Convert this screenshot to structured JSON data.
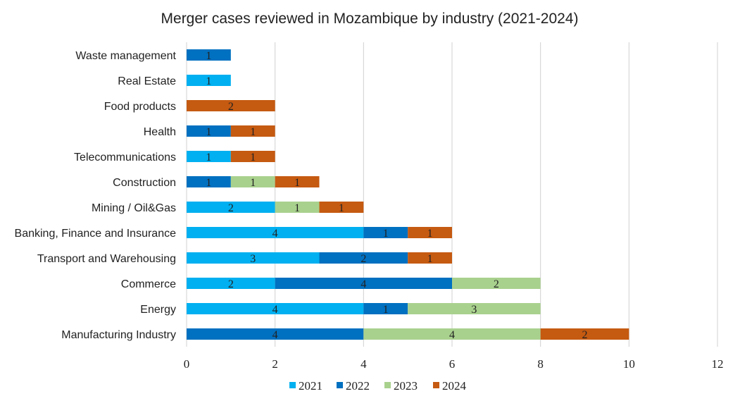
{
  "chart_data": {
    "type": "bar",
    "orientation": "horizontal",
    "stacked": true,
    "title": "Merger cases reviewed in Mozambique by industry (2021-2024)",
    "xlabel": "",
    "ylabel": "",
    "xlim": [
      0,
      12
    ],
    "x_ticks": [
      0,
      2,
      4,
      6,
      8,
      10,
      12
    ],
    "grid": true,
    "legend_position": "bottom",
    "categories": [
      "Waste management",
      "Real Estate",
      "Food products",
      "Health",
      "Telecommunications",
      "Construction",
      "Mining / Oil&Gas",
      "Banking, Finance and Insurance",
      "Transport and Warehousing",
      "Commerce",
      "Energy",
      "Manufacturing Industry"
    ],
    "series": [
      {
        "name": "2021",
        "color": "#00b0f0",
        "values": [
          0,
          1,
          0,
          0,
          1,
          0,
          2,
          4,
          3,
          2,
          4,
          0
        ]
      },
      {
        "name": "2022",
        "color": "#0070c0",
        "values": [
          1,
          0,
          0,
          1,
          0,
          1,
          0,
          1,
          2,
          4,
          1,
          4
        ]
      },
      {
        "name": "2023",
        "color": "#a9d18e",
        "values": [
          0,
          0,
          0,
          0,
          0,
          1,
          1,
          0,
          0,
          2,
          3,
          4
        ]
      },
      {
        "name": "2024",
        "color": "#c55a11",
        "values": [
          0,
          0,
          2,
          1,
          1,
          1,
          1,
          1,
          1,
          0,
          0,
          2
        ]
      }
    ]
  }
}
